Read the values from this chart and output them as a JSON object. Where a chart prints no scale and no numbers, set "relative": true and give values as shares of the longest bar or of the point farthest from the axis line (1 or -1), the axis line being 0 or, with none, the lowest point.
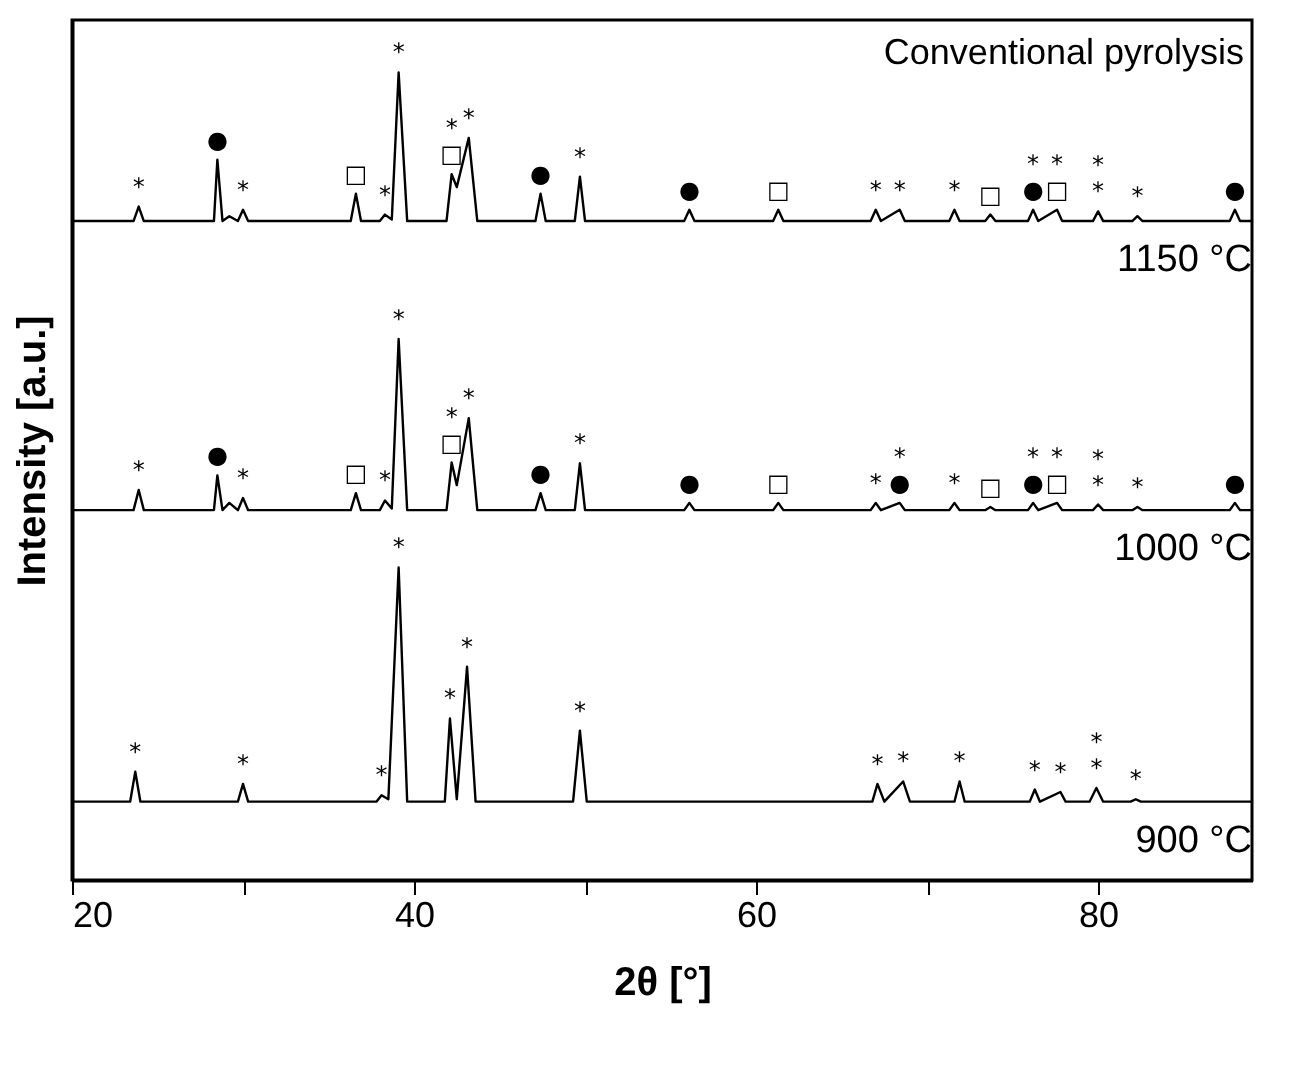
{
  "chart_data": {
    "type": "line",
    "relative": true,
    "xlabel": "2θ [°]",
    "ylabel": "Intensity [a.u.]",
    "xlim": [
      20,
      89
    ],
    "xticks": [
      20,
      {
        "value": 30,
        "label": null
      },
      40,
      {
        "value": 50,
        "label": null
      },
      60,
      {
        "value": 70,
        "label": null
      },
      80
    ],
    "grid": false,
    "marker": "none",
    "line_style": "solid",
    "series": [
      {
        "name": "900 °C",
        "color": "#000000",
        "x": [
          20,
          23.4,
          23.7,
          24.0,
          29.7,
          30.0,
          30.3,
          37.8,
          38.1,
          38.5,
          39.1,
          39.6,
          41.8,
          42.1,
          42.5,
          43.1,
          43.6,
          49.3,
          49.7,
          50.1,
          66.8,
          67.1,
          67.5,
          68.6,
          69.0,
          71.6,
          71.9,
          72.2,
          76.0,
          76.3,
          76.6,
          77.8,
          78.1,
          79.5,
          79.9,
          80.3,
          81.9,
          82.2,
          82.5,
          89
        ],
        "values": [
          0.097,
          0.097,
          0.134,
          0.097,
          0.097,
          0.119,
          0.097,
          0.097,
          0.105,
          0.1,
          0.387,
          0.097,
          0.097,
          0.2,
          0.1,
          0.264,
          0.097,
          0.097,
          0.185,
          0.097,
          0.097,
          0.119,
          0.097,
          0.122,
          0.097,
          0.097,
          0.122,
          0.097,
          0.097,
          0.112,
          0.097,
          0.109,
          0.097,
          0.097,
          0.114,
          0.097,
          0.097,
          0.1,
          0.097,
          0.097
        ]
      },
      {
        "name": "1000 °C",
        "color": "#000000",
        "x": [
          20,
          23.6,
          23.9,
          24.2,
          28.3,
          28.5,
          28.8,
          29.2,
          29.7,
          30.0,
          30.3,
          36.3,
          36.6,
          36.9,
          38.0,
          38.3,
          38.7,
          39.1,
          39.6,
          41.9,
          42.2,
          42.5,
          43.2,
          43.7,
          47.1,
          47.4,
          47.7,
          49.4,
          49.7,
          50.0,
          55.8,
          56.1,
          56.4,
          61.0,
          61.3,
          61.6,
          66.7,
          67.0,
          67.3,
          68.4,
          68.7,
          71.3,
          71.6,
          71.9,
          73.4,
          73.7,
          74.0,
          75.9,
          76.2,
          76.5,
          77.6,
          77.9,
          79.7,
          80.0,
          80.3,
          82.0,
          82.3,
          82.6,
          87.7,
          88.0,
          88.3,
          89
        ],
        "values": [
          0.458,
          0.458,
          0.483,
          0.458,
          0.458,
          0.501,
          0.458,
          0.467,
          0.458,
          0.473,
          0.458,
          0.458,
          0.479,
          0.458,
          0.458,
          0.47,
          0.46,
          0.67,
          0.458,
          0.458,
          0.517,
          0.489,
          0.572,
          0.458,
          0.458,
          0.479,
          0.458,
          0.458,
          0.516,
          0.458,
          0.458,
          0.467,
          0.458,
          0.458,
          0.467,
          0.458,
          0.458,
          0.467,
          0.458,
          0.467,
          0.458,
          0.458,
          0.467,
          0.458,
          0.458,
          0.462,
          0.458,
          0.458,
          0.467,
          0.458,
          0.467,
          0.458,
          0.458,
          0.465,
          0.458,
          0.458,
          0.462,
          0.458,
          0.458,
          0.467,
          0.458,
          0.458
        ]
      },
      {
        "name": "1150 °C",
        "color": "#000000",
        "x": [
          20,
          23.6,
          23.9,
          24.2,
          28.3,
          28.5,
          28.8,
          29.2,
          29.7,
          30.0,
          30.3,
          36.3,
          36.6,
          36.9,
          38.0,
          38.3,
          38.7,
          39.1,
          39.6,
          41.9,
          42.2,
          42.5,
          43.2,
          43.7,
          47.1,
          47.4,
          47.7,
          49.4,
          49.7,
          50.0,
          55.8,
          56.1,
          56.4,
          61.0,
          61.3,
          61.6,
          66.7,
          67.0,
          67.3,
          68.4,
          68.7,
          71.3,
          71.6,
          71.9,
          73.4,
          73.7,
          74.0,
          75.9,
          76.2,
          76.5,
          77.6,
          77.9,
          79.7,
          80.0,
          80.3,
          82.0,
          82.3,
          82.6,
          87.7,
          88.0,
          88.3,
          89
        ],
        "values": [
          0.816,
          0.816,
          0.834,
          0.816,
          0.816,
          0.892,
          0.816,
          0.822,
          0.816,
          0.83,
          0.816,
          0.816,
          0.85,
          0.816,
          0.816,
          0.824,
          0.818,
          1.0,
          0.816,
          0.816,
          0.874,
          0.858,
          0.919,
          0.816,
          0.816,
          0.85,
          0.816,
          0.816,
          0.871,
          0.816,
          0.816,
          0.83,
          0.816,
          0.816,
          0.83,
          0.816,
          0.816,
          0.83,
          0.816,
          0.83,
          0.816,
          0.816,
          0.83,
          0.816,
          0.816,
          0.824,
          0.816,
          0.816,
          0.83,
          0.816,
          0.83,
          0.816,
          0.816,
          0.828,
          0.816,
          0.816,
          0.822,
          0.816,
          0.816,
          0.83,
          0.816,
          0.816
        ]
      }
    ],
    "annotations": [
      "Conventional pyrolysis",
      {
        "text": "*",
        "x": 23.7,
        "y": 0.134
      },
      {
        "text": "*",
        "x": 30.0,
        "y": 0.119
      },
      {
        "text": "*",
        "x": 38.1,
        "y": 0.105
      },
      {
        "text": "*",
        "x": 39.1,
        "y": 0.387
      },
      {
        "text": "*",
        "x": 42.1,
        "y": 0.2
      },
      {
        "text": "*",
        "x": 43.1,
        "y": 0.264
      },
      {
        "text": "*",
        "x": 49.7,
        "y": 0.185
      },
      {
        "text": "*",
        "x": 67.1,
        "y": 0.119
      },
      {
        "text": "*",
        "x": 68.6,
        "y": 0.122
      },
      {
        "text": "*",
        "x": 71.9,
        "y": 0.122
      },
      {
        "text": "*",
        "x": 76.3,
        "y": 0.112
      },
      {
        "text": "*",
        "x": 77.8,
        "y": 0.109
      },
      {
        "text": "*",
        "x": 79.9,
        "y": 0.114
      },
      {
        "text": "*",
        "x": 79.9,
        "y": 0.114
      },
      {
        "text": "*",
        "x": 82.2,
        "y": 0.1
      },
      {
        "text": "*",
        "x": 23.9,
        "y": 0.483
      },
      {
        "text": "●",
        "x": 28.5,
        "y": 0.501
      },
      {
        "text": "*",
        "x": 30.0,
        "y": 0.473
      },
      {
        "text": "□",
        "x": 36.6,
        "y": 0.479
      },
      {
        "text": "*",
        "x": 38.3,
        "y": 0.47
      },
      {
        "text": "*",
        "x": 39.1,
        "y": 0.67
      },
      {
        "text": "□",
        "x": 42.2,
        "y": 0.517
      },
      {
        "text": "*",
        "x": 42.2,
        "y": 0.517
      },
      {
        "text": "*",
        "x": 43.2,
        "y": 0.572
      },
      {
        "text": "●",
        "x": 47.4,
        "y": 0.479
      },
      {
        "text": "*",
        "x": 49.7,
        "y": 0.516
      },
      {
        "text": "●",
        "x": 56.1,
        "y": 0.467
      },
      {
        "text": "□",
        "x": 61.3,
        "y": 0.467
      },
      {
        "text": "*",
        "x": 67.0,
        "y": 0.467
      },
      {
        "text": "●",
        "x": 68.4,
        "y": 0.467
      },
      {
        "text": "*",
        "x": 68.4,
        "y": 0.467
      },
      {
        "text": "*",
        "x": 71.6,
        "y": 0.467
      },
      {
        "text": "□",
        "x": 73.7,
        "y": 0.462
      },
      {
        "text": "●",
        "x": 76.2,
        "y": 0.467
      },
      {
        "text": "*",
        "x": 76.2,
        "y": 0.467
      },
      {
        "text": "□",
        "x": 77.6,
        "y": 0.467
      },
      {
        "text": "*",
        "x": 77.6,
        "y": 0.467
      },
      {
        "text": "*",
        "x": 80.0,
        "y": 0.465
      },
      {
        "text": "*",
        "x": 80.0,
        "y": 0.465
      },
      {
        "text": "*",
        "x": 82.3,
        "y": 0.462
      },
      {
        "text": "●",
        "x": 88.0,
        "y": 0.467
      },
      {
        "text": "*",
        "x": 23.9,
        "y": 0.834
      },
      {
        "text": "●",
        "x": 28.5,
        "y": 0.892
      },
      {
        "text": "*",
        "x": 30.0,
        "y": 0.83
      },
      {
        "text": "□",
        "x": 36.6,
        "y": 0.85
      },
      {
        "text": "*",
        "x": 38.3,
        "y": 0.824
      },
      {
        "text": "*",
        "x": 39.1,
        "y": 1.0
      },
      {
        "text": "□",
        "x": 42.2,
        "y": 0.874
      },
      {
        "text": "*",
        "x": 42.2,
        "y": 0.874
      },
      {
        "text": "*",
        "x": 43.2,
        "y": 0.919
      },
      {
        "text": "●",
        "x": 47.4,
        "y": 0.85
      },
      {
        "text": "*",
        "x": 49.7,
        "y": 0.871
      },
      {
        "text": "●",
        "x": 56.1,
        "y": 0.83
      },
      {
        "text": "□",
        "x": 61.3,
        "y": 0.83
      },
      {
        "text": "*",
        "x": 67.0,
        "y": 0.83
      },
      {
        "text": "*",
        "x": 68.4,
        "y": 0.83
      },
      {
        "text": "*",
        "x": 71.6,
        "y": 0.83
      },
      {
        "text": "□",
        "x": 73.7,
        "y": 0.824
      },
      {
        "text": "●",
        "x": 76.2,
        "y": 0.83
      },
      {
        "text": "*",
        "x": 76.2,
        "y": 0.83
      },
      {
        "text": "□",
        "x": 77.6,
        "y": 0.83
      },
      {
        "text": "*",
        "x": 77.6,
        "y": 0.83
      },
      {
        "text": "*",
        "x": 80.0,
        "y": 0.828
      },
      {
        "text": "*",
        "x": 80.0,
        "y": 0.828
      },
      {
        "text": "*",
        "x": 82.3,
        "y": 0.822
      },
      {
        "text": "●",
        "x": 88.0,
        "y": 0.83
      }
    ]
  }
}
